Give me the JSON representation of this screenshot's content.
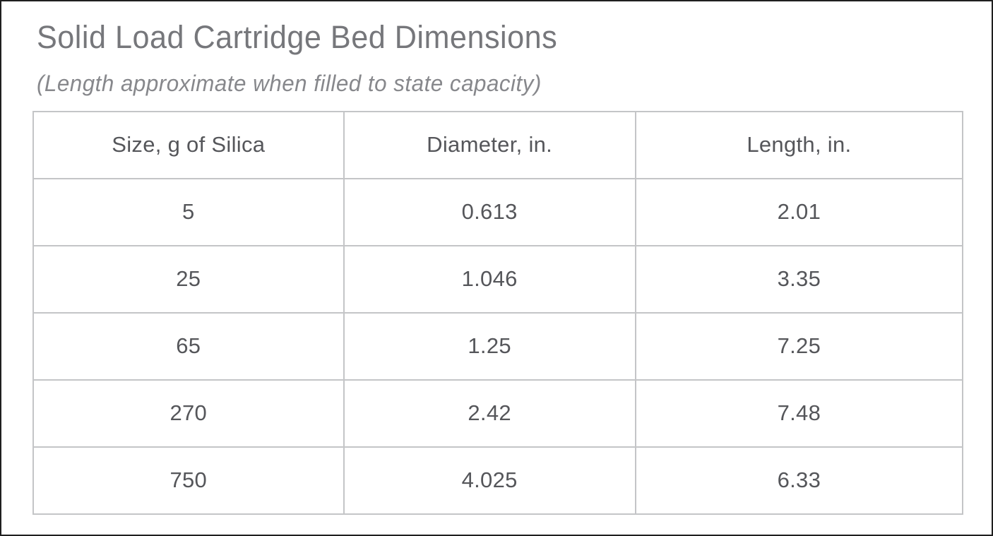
{
  "page": {
    "title": "Solid Load Cartridge Bed Dimensions",
    "subtitle": "(Length approximate when filled to state capacity)"
  },
  "colors": {
    "background": "#ffffff",
    "page_border": "#1f1f1f",
    "title_text": "#76777b",
    "subtitle_text": "#87888c",
    "table_text": "#55565a",
    "table_border": "#c4c5c7"
  },
  "table": {
    "headers": [
      "Size, g of Silica",
      "Diameter, in.",
      "Length, in."
    ],
    "rows": [
      [
        "5",
        "0.613",
        "2.01"
      ],
      [
        "25",
        "1.046",
        "3.35"
      ],
      [
        "65",
        "1.25",
        "7.25"
      ],
      [
        "270",
        "2.42",
        "7.48"
      ],
      [
        "750",
        "4.025",
        "6.33"
      ]
    ]
  },
  "chart_data": {
    "type": "table",
    "title": "Solid Load Cartridge Bed Dimensions",
    "subtitle": "(Length approximate when filled to state capacity)",
    "columns": [
      "Size, g of Silica",
      "Diameter, in.",
      "Length, in."
    ],
    "rows": [
      [
        5,
        0.613,
        2.01
      ],
      [
        25,
        1.046,
        3.35
      ],
      [
        65,
        1.25,
        7.25
      ],
      [
        270,
        2.42,
        7.48
      ],
      [
        750,
        4.025,
        6.33
      ]
    ]
  }
}
